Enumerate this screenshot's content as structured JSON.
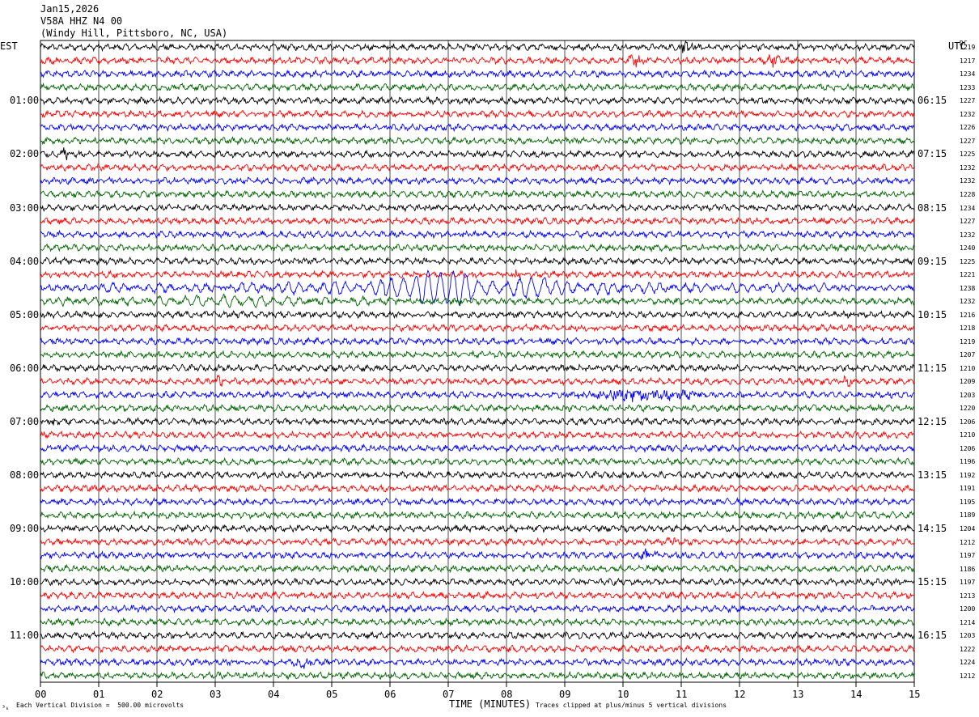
{
  "header": {
    "date": "Jan15,2026",
    "station": "V58A HHZ N4 00",
    "location": "(Windy Hill, Pittsboro, NC, USA)"
  },
  "left_tz": "EST",
  "right_tz": "UTC",
  "dc_label": "DC",
  "footer": {
    "scale": "Each Vertical Division =  500.00 microvolts",
    "xlabel": "TIME (MINUTES)",
    "clip": "Traces clipped at plus/minus 5 vertical divisions",
    "corner_mark": "³ₖ"
  },
  "colors": {
    "trace_cycle": [
      "#000000",
      "#ff0000",
      "#0000ff",
      "#006400"
    ],
    "grid": "#000000",
    "background": "#ffffff"
  },
  "chart_data": {
    "type": "line",
    "title": "",
    "xlabel": "TIME (MINUTES)",
    "ylabel": "",
    "xlim": [
      0,
      15
    ],
    "x_ticks": [
      "00",
      "01",
      "02",
      "03",
      "04",
      "05",
      "06",
      "07",
      "08",
      "09",
      "10",
      "11",
      "12",
      "13",
      "14",
      "15"
    ],
    "trace_minutes": 15,
    "left_time_labels": [
      "01:00",
      "02:00",
      "03:00",
      "04:00",
      "05:00",
      "06:00",
      "07:00",
      "08:00",
      "09:00",
      "10:00",
      "11:00"
    ],
    "right_time_labels": [
      "06:15",
      "07:15",
      "08:15",
      "09:15",
      "10:15",
      "11:15",
      "12:15",
      "13:15",
      "14:15",
      "15:15",
      "16:15"
    ],
    "dc_offsets": [
      1219,
      1217,
      1234,
      1233,
      1227,
      1232,
      1226,
      1227,
      1225,
      1232,
      1232,
      1228,
      1234,
      1227,
      1232,
      1240,
      1225,
      1221,
      1238,
      1232,
      1216,
      1218,
      1219,
      1207,
      1210,
      1209,
      1203,
      1220,
      1206,
      1210,
      1206,
      1196,
      1192,
      1191,
      1195,
      1189,
      1204,
      1212,
      1197,
      1186,
      1197,
      1213,
      1200,
      1214,
      1203,
      1222,
      1224,
      1212
    ],
    "noise_amplitude_divisions": 0.3,
    "clip_divisions": 5,
    "events": [
      {
        "trace": 0,
        "start_min": 10.9,
        "end_min": 11.3,
        "peak_div": 1.0
      },
      {
        "trace": 1,
        "start_min": 10.0,
        "end_min": 10.4,
        "peak_div": 0.9
      },
      {
        "trace": 1,
        "start_min": 12.4,
        "end_min": 12.8,
        "peak_div": 0.8
      },
      {
        "trace": 8,
        "start_min": 0.3,
        "end_min": 0.5,
        "peak_div": 0.9
      },
      {
        "trace": 17,
        "start_min": 8.0,
        "end_min": 8.3,
        "peak_div": 0.7
      },
      {
        "trace": 18,
        "start_min": 1.0,
        "end_min": 13.5,
        "peak_div": 1.0,
        "period_min": 0.2
      },
      {
        "trace": 18,
        "start_min": 5.9,
        "end_min": 8.7,
        "peak_div": 2.3,
        "period_min": 0.22
      },
      {
        "trace": 19,
        "start_min": 0.3,
        "end_min": 6.0,
        "peak_div": 0.7,
        "period_min": 0.22
      },
      {
        "trace": 25,
        "start_min": 2.9,
        "end_min": 3.2,
        "peak_div": 0.8
      },
      {
        "trace": 25,
        "start_min": 13.7,
        "end_min": 14.0,
        "peak_div": 0.6
      },
      {
        "trace": 26,
        "start_min": 8.9,
        "end_min": 11.7,
        "peak_div": 0.9
      },
      {
        "trace": 28,
        "start_min": 0.1,
        "end_min": 0.4,
        "peak_div": 0.6
      },
      {
        "trace": 38,
        "start_min": 10.2,
        "end_min": 10.6,
        "peak_div": 0.9
      },
      {
        "trace": 37,
        "start_min": 10.7,
        "end_min": 11.0,
        "peak_div": 0.6
      },
      {
        "trace": 46,
        "start_min": 4.3,
        "end_min": 4.7,
        "peak_div": 0.8
      },
      {
        "trace": 45,
        "start_min": 2.6,
        "end_min": 2.9,
        "peak_div": 0.5
      }
    ]
  }
}
